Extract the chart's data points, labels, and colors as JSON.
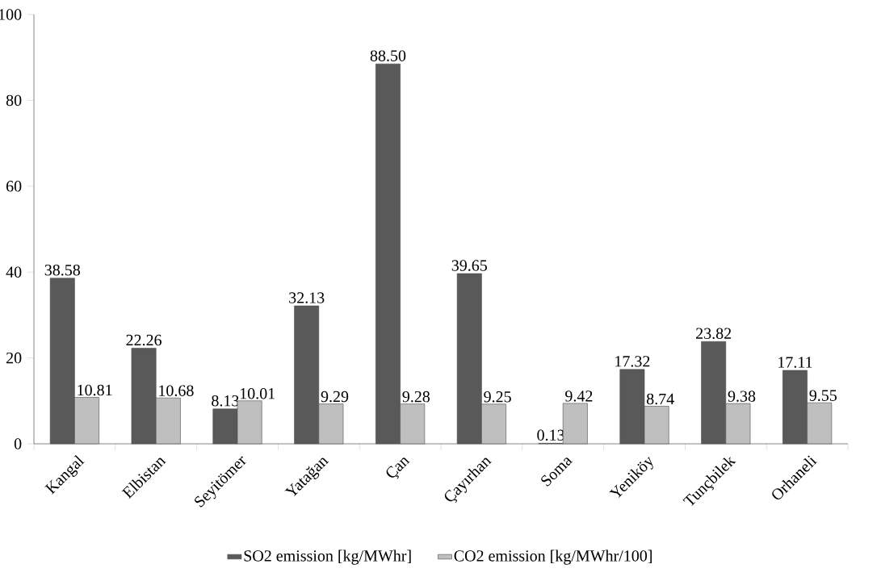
{
  "chart_data": {
    "type": "bar",
    "categories": [
      "Kangal",
      "Elbistan",
      "Seyitömer",
      "Yatağan",
      "Çan",
      "Çayırhan",
      "Soma",
      "Yeniköy",
      "Tunçbilek",
      "Orhaneli"
    ],
    "series": [
      {
        "name": "SO2 emission [kg/MWhr]",
        "color": "#595959",
        "values": [
          38.58,
          22.26,
          8.13,
          32.13,
          88.5,
          39.65,
          0.13,
          17.32,
          23.82,
          17.11
        ],
        "value_labels": [
          "38.58",
          "22.26",
          "8.13",
          "32.13",
          "88.50",
          "39.65",
          "0.13",
          "17.32",
          "23.82",
          "17.11"
        ]
      },
      {
        "name": "CO2 emission [kg/MWhr/100]",
        "color": "#bfbfbf",
        "values": [
          10.81,
          10.68,
          10.01,
          9.29,
          9.28,
          9.25,
          9.42,
          8.74,
          9.38,
          9.55
        ],
        "value_labels": [
          "10.81",
          "10.68",
          "10.01",
          "9.29",
          "9.28",
          "9.25",
          "9.42",
          "8.74",
          "9.38",
          "9.55"
        ]
      }
    ],
    "ylim": [
      0,
      100
    ],
    "yticks": [
      0,
      20,
      40,
      60,
      80,
      100
    ],
    "grid": false,
    "legend": "bottom"
  }
}
